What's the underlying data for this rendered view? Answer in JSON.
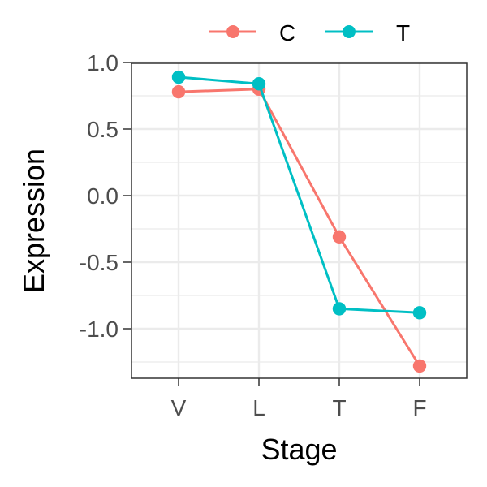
{
  "chart_data": {
    "type": "line",
    "title": "",
    "xlabel": "Stage",
    "ylabel": "Expression",
    "categories": [
      "V",
      "L",
      "T",
      "F"
    ],
    "yticks": [
      1.0,
      0.5,
      0.0,
      -0.5,
      -1.0
    ],
    "ytick_labels": [
      "1.0",
      "0.5",
      "0.0",
      "-0.5",
      "-1.0"
    ],
    "ylim": [
      -1.38,
      1.0
    ],
    "grid": true,
    "legend_position": "top",
    "series": [
      {
        "name": "C",
        "color": "#F8766D",
        "values": [
          0.78,
          0.8,
          -0.31,
          -1.28
        ]
      },
      {
        "name": "T",
        "color": "#00BFC4",
        "values": [
          0.89,
          0.84,
          -0.85,
          -0.88
        ]
      }
    ]
  }
}
